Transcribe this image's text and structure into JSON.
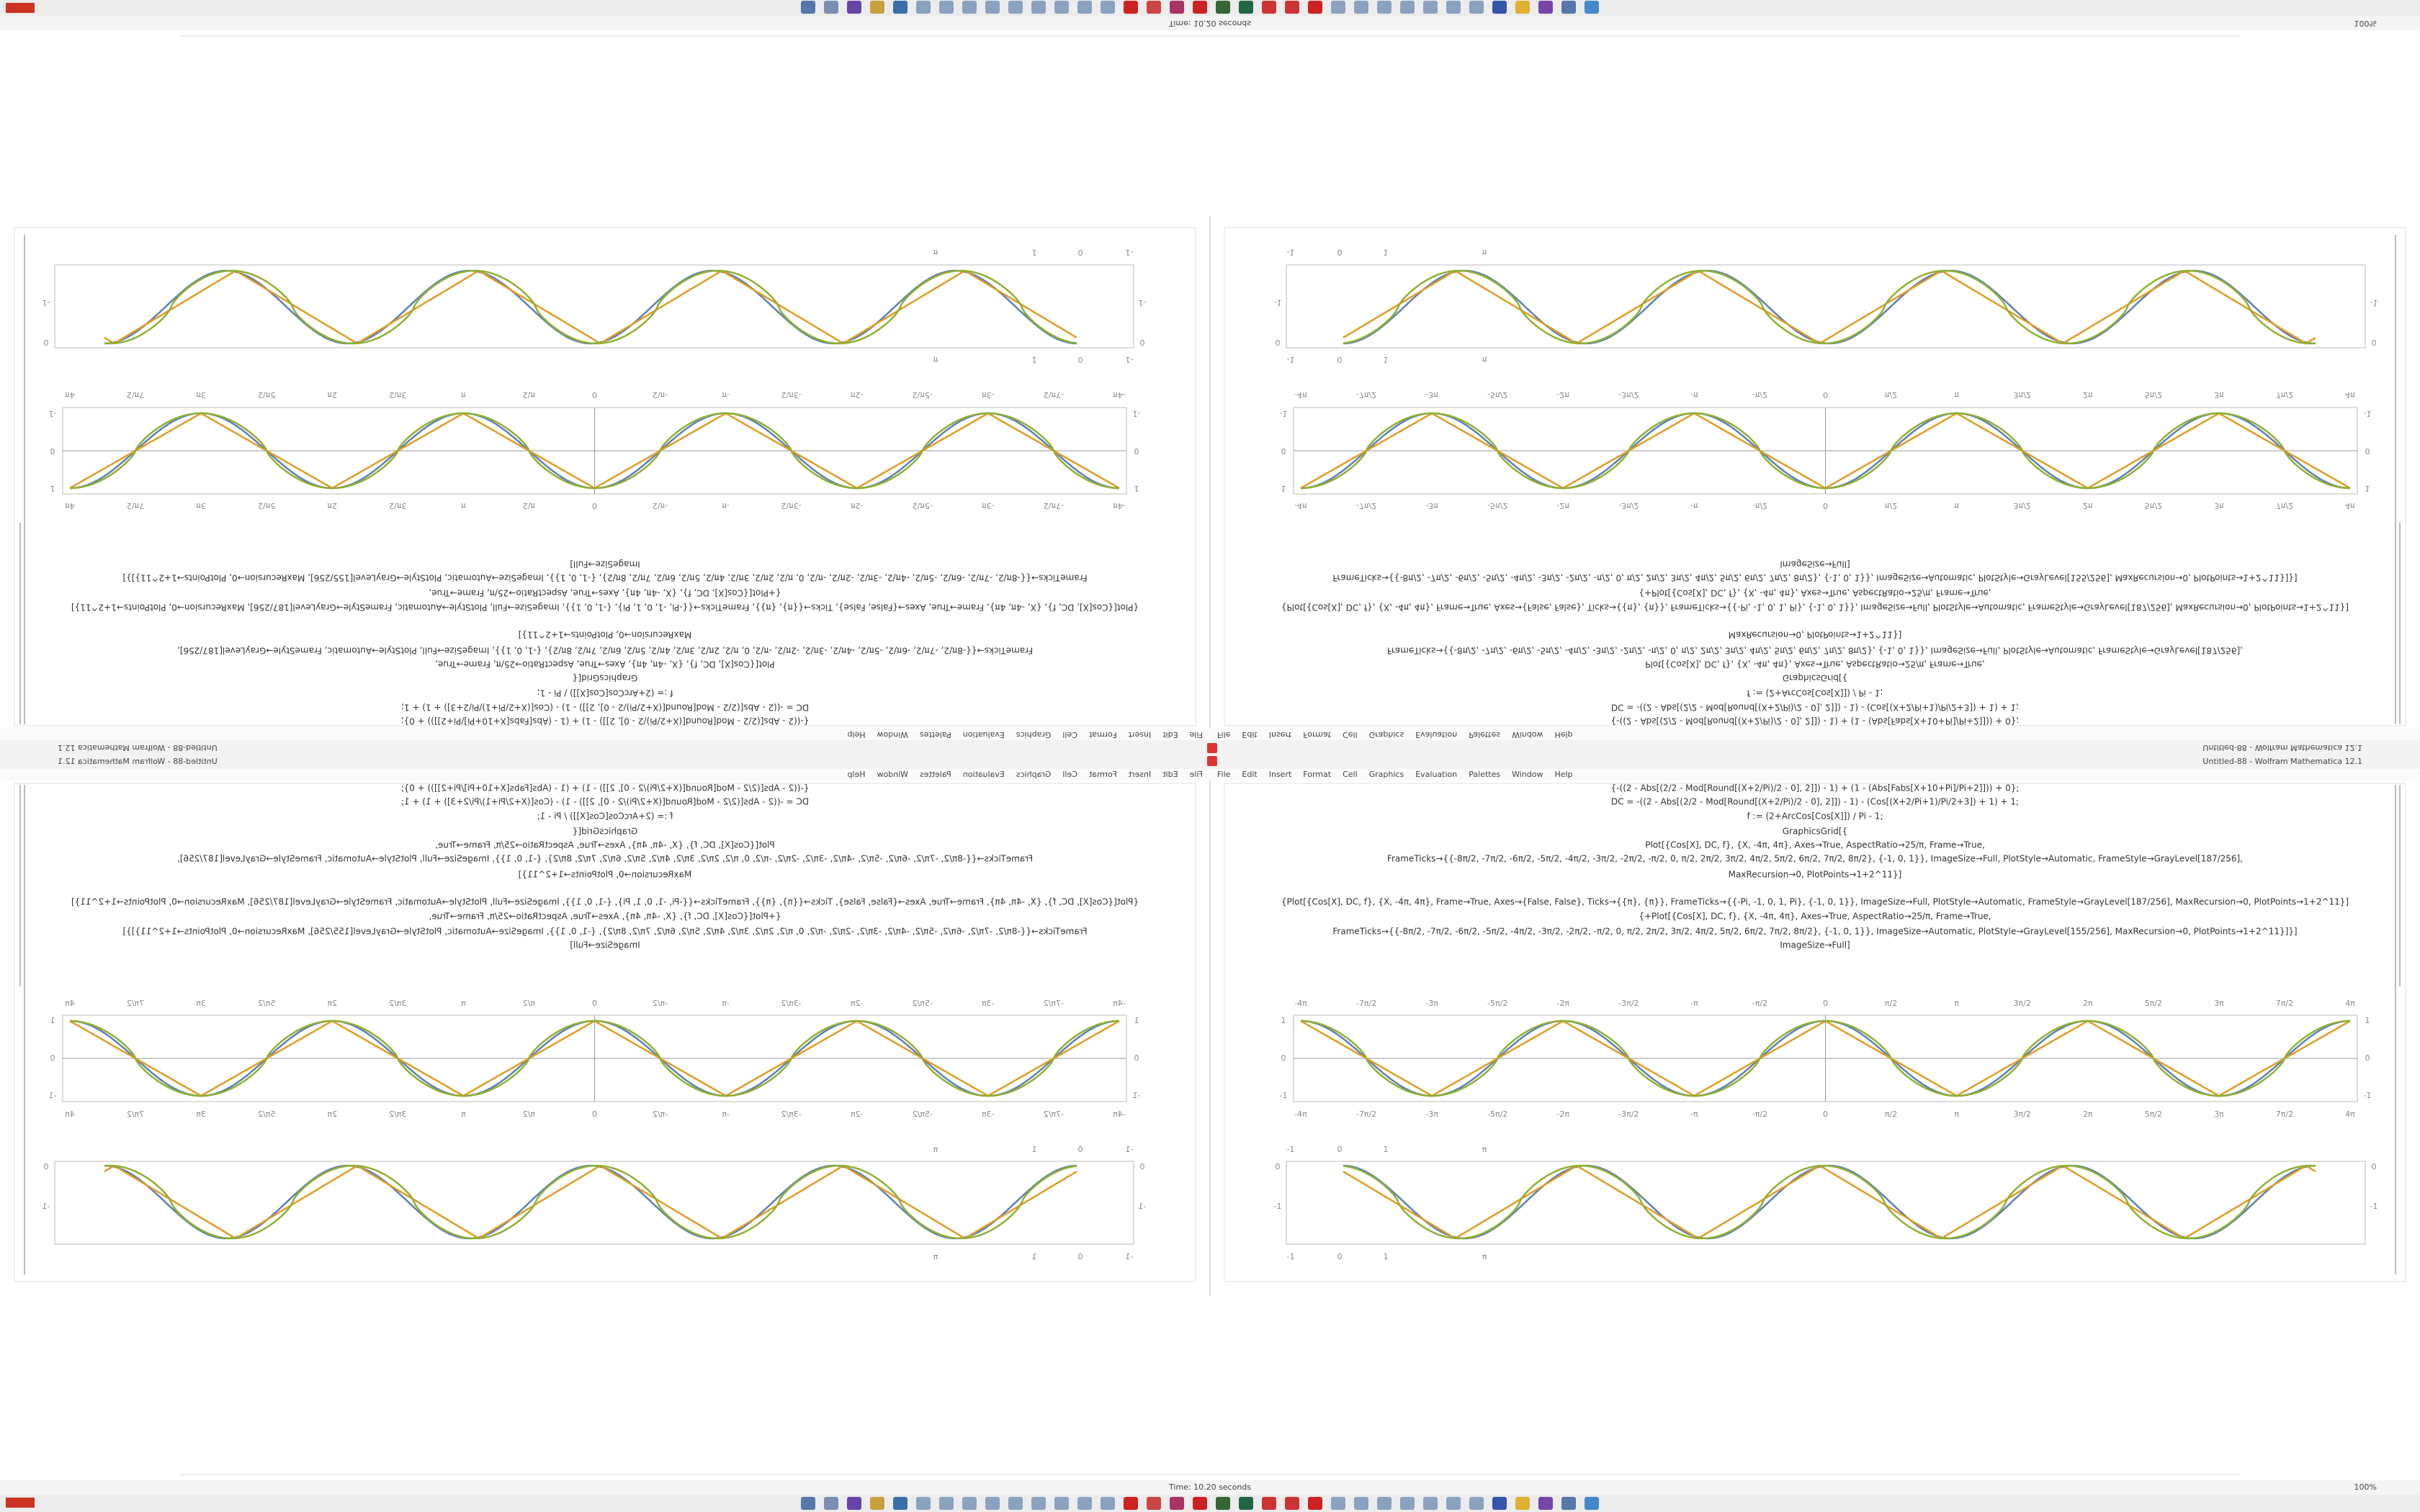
{
  "window": {
    "title": "Untitled-88 - Wolfram Mathematica 12.1",
    "menu": [
      "File",
      "Edit",
      "Insert",
      "Format",
      "Cell",
      "Graphics",
      "Evaluation",
      "Palettes",
      "Window",
      "Help"
    ]
  },
  "notebook": {
    "input": [
      "{-((2 - Abs[(2/2 - Mod[Round[(X+2/Pi)/2 - 0], 2]]) - 1) + (1 - (Abs[Fabs[X+10+Pi]/Pi+2]])) + 0};",
      "DC = -((2 - Abs[(2/2 - Mod[Round[(X+2/Pi)/2 - 0], 2]]) - 1) - (Cos[(X+2/Pi+1)/Pi/2+3]) + 1) + 1;",
      "f := (2+ArcCos[Cos[X]]) / Pi - 1;",
      "GraphicsGrid[{",
      "Plot[{Cos[X], DC, f}, {X, -4π, 4π}, Axes→True, AspectRatio→25/π, Frame→True,",
      "FrameTicks→{{-8π/2, -7π/2, -6π/2, -5π/2, -4π/2, -3π/2, -2π/2, -π/2, 0, π/2, 2π/2, 3π/2, 4π/2, 5π/2, 6π/2, 7π/2, 8π/2}, {-1, 0, 1}}, ImageSize→Full, PlotStyle→Automatic, FrameStyle→GrayLevel[187/256],",
      "MaxRecursion→0, PlotPoints→1+2^11}]",
      "{Plot[{Cos[X], DC, f}, {X, -4π, 4π}, Frame→True, Axes→{False, False}, Ticks→{{π}, {π}}, FrameTicks→{{-Pi, -1, 0, 1, Pi}, {-1, 0, 1}}, ImageSize→Full, PlotStyle→Automatic, FrameStyle→GrayLevel[187/256], MaxRecursion→0, PlotPoints→1+2^11}]",
      "{+Plot[{Cos[X], DC, f}, {X, -4π, 4π}, Axes→True, AspectRatio→25/π, Frame→True,",
      "FrameTicks→{{-8π/2, -7π/2, -6π/2, -5π/2, -4π/2, -3π/2, -2π/2, -π/2, 0, π/2, 2π/2, 3π/2, 4π/2, 5π/2, 6π/2, 7π/2, 8π/2}, {-1, 0, 1}}, ImageSize→Automatic, PlotStyle→GrayLevel[155/256], MaxRecursion→0, PlotPoints→1+2^11}]}]",
      "ImageSize→Full]"
    ],
    "plot1": {
      "x_ticks": [
        "-4π",
        "-7π/2",
        "-3π",
        "-5π/2",
        "-2π",
        "-3π/2",
        "-π",
        "-π/2",
        "0",
        "π/2",
        "π",
        "3π/2",
        "2π",
        "5π/2",
        "3π",
        "7π/2",
        "4π"
      ],
      "y_ticks": [
        "1",
        "0",
        "-1"
      ]
    },
    "plot2": {
      "x_ticks": [
        "-1",
        "0",
        "1",
        "π"
      ],
      "y_ticks": [
        "0",
        "-1"
      ]
    }
  },
  "status_bar": {
    "timing": "Time: 10.20 seconds",
    "zoom": "100%"
  }
}
